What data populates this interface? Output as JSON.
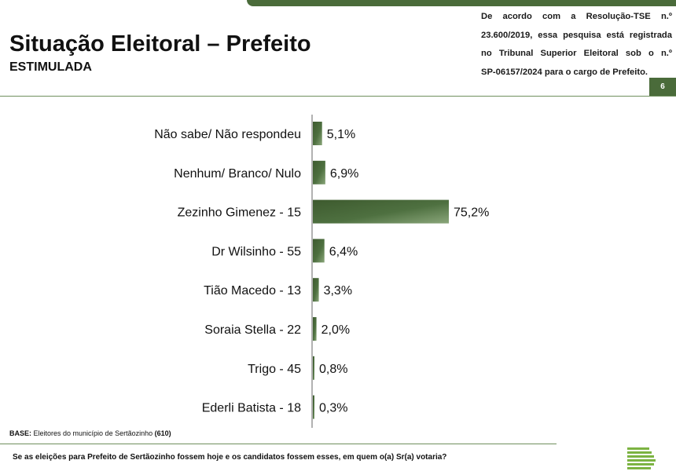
{
  "header": {
    "title": "Situação Eleitoral – Prefeito",
    "subtitle": "ESTIMULADA",
    "registration_lines": [
      "De acordo com a Resolução-TSE n.º",
      "23.600/2019, essa pesquisa está registrada",
      "no Tribunal Superior Eleitoral sob o n.º",
      "SP-06157/2024 para o cargo de Prefeito."
    ],
    "page_number": "6"
  },
  "chart_data": {
    "type": "bar",
    "orientation": "horizontal",
    "categories": [
      "Não sabe/ Não respondeu",
      "Nenhum/ Branco/ Nulo",
      "Zezinho Gimenez - 15",
      "Dr Wilsinho - 55",
      "Tião Macedo - 13",
      "Soraia Stella - 22",
      "Trigo - 45",
      "Ederli Batista - 18"
    ],
    "values": [
      5.1,
      6.9,
      75.2,
      6.4,
      3.3,
      2.0,
      0.8,
      0.3
    ],
    "value_labels": [
      "5,1%",
      "6,9%",
      "75,2%",
      "6,4%",
      "3,3%",
      "2,0%",
      "0,8%",
      "0,3%"
    ],
    "xlim": [
      0,
      75.2
    ],
    "grid": false,
    "bar_color": "#4a6b3a"
  },
  "footer": {
    "base_label": "BASE:",
    "base_text": " Eleitores do município de Sertãozinho ",
    "base_count": "(610)",
    "question": "Se as eleições para Prefeito de Sertãozinho fossem hoje e os candidatos fossem esses, em quem o(a) Sr(a) votaria?"
  }
}
